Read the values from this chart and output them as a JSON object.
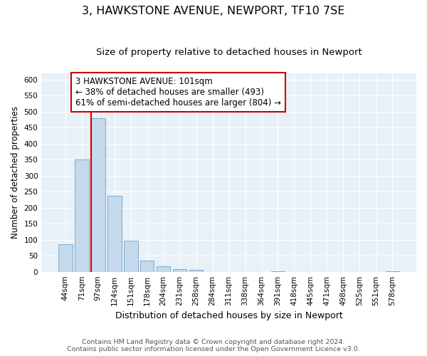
{
  "title": "3, HAWKSTONE AVENUE, NEWPORT, TF10 7SE",
  "subtitle": "Size of property relative to detached houses in Newport",
  "xlabel": "Distribution of detached houses by size in Newport",
  "ylabel": "Number of detached properties",
  "bar_labels": [
    "44sqm",
    "71sqm",
    "97sqm",
    "124sqm",
    "151sqm",
    "178sqm",
    "204sqm",
    "231sqm",
    "258sqm",
    "284sqm",
    "311sqm",
    "338sqm",
    "364sqm",
    "391sqm",
    "418sqm",
    "445sqm",
    "471sqm",
    "498sqm",
    "525sqm",
    "551sqm",
    "578sqm"
  ],
  "bar_values": [
    85,
    350,
    480,
    237,
    97,
    35,
    18,
    8,
    5,
    0,
    0,
    0,
    0,
    1,
    0,
    0,
    0,
    0,
    0,
    0,
    2
  ],
  "bar_color": "#c5d9ec",
  "bar_edge_color": "#7aacce",
  "vline_x_index": 2,
  "vline_color": "#cc0000",
  "bg_color": "#e8f0f8",
  "grid_color": "#ffffff",
  "ylim": [
    0,
    620
  ],
  "yticks": [
    0,
    50,
    100,
    150,
    200,
    250,
    300,
    350,
    400,
    450,
    500,
    550,
    600
  ],
  "annotation_text": "3 HAWKSTONE AVENUE: 101sqm\n← 38% of detached houses are smaller (493)\n61% of semi-detached houses are larger (804) →",
  "annotation_box_color": "#ffffff",
  "annotation_box_edge": "#cc0000",
  "footer_line1": "Contains HM Land Registry data © Crown copyright and database right 2024.",
  "footer_line2": "Contains public sector information licensed under the Open Government Licence v3.0.",
  "title_fontsize": 11.5,
  "subtitle_fontsize": 9.5,
  "xlabel_fontsize": 9,
  "ylabel_fontsize": 8.5,
  "tick_fontsize": 7.5,
  "annotation_fontsize": 8.5,
  "footer_fontsize": 6.8
}
